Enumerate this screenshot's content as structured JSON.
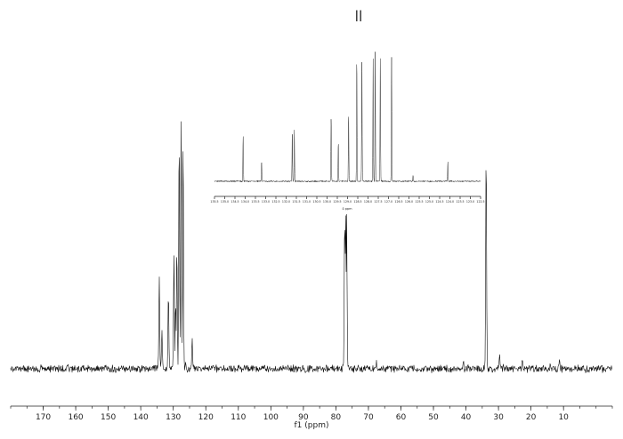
{
  "chart_data": [
    {
      "type": "line",
      "title": "",
      "xlabel": "f1 (ppm)",
      "ylabel": "",
      "xlim": [
        180,
        -5
      ],
      "x_reversed": true,
      "grid": false,
      "legend": "none",
      "x_ticks": [
        170,
        160,
        150,
        140,
        130,
        120,
        110,
        100,
        90,
        80,
        70,
        60,
        50,
        40,
        30,
        20,
        10
      ],
      "x_tick_labels": [
        "170",
        "160",
        "150",
        "140",
        "130",
        "120",
        "110",
        "100",
        "90",
        "80",
        "70",
        "60",
        "50",
        "40",
        "30",
        "20",
        "10"
      ],
      "annotations": [
        "||"
      ],
      "peaks": [
        {
          "x": 162.5,
          "intensity": 0.02
        },
        {
          "x": 134.3,
          "intensity": 0.35
        },
        {
          "x": 133.5,
          "intensity": 0.15
        },
        {
          "x": 131.5,
          "intensity": 0.3
        },
        {
          "x": 129.8,
          "intensity": 0.44
        },
        {
          "x": 129.3,
          "intensity": 0.26
        },
        {
          "x": 128.9,
          "intensity": 0.48
        },
        {
          "x": 128.2,
          "intensity": 0.9
        },
        {
          "x": 127.6,
          "intensity": 0.96
        },
        {
          "x": 127.0,
          "intensity": 0.9
        },
        {
          "x": 126.2,
          "intensity": 0.04
        },
        {
          "x": 124.2,
          "intensity": 0.12
        },
        {
          "x": 77.3,
          "intensity": 0.6
        },
        {
          "x": 77.0,
          "intensity": 0.62
        },
        {
          "x": 76.7,
          "intensity": 0.6
        },
        {
          "x": 67.5,
          "intensity": 0.02
        },
        {
          "x": 40.8,
          "intensity": 0.03
        },
        {
          "x": 33.8,
          "intensity": 0.86
        },
        {
          "x": 29.7,
          "intensity": 0.06
        },
        {
          "x": 28.5,
          "intensity": 0.02
        },
        {
          "x": 22.7,
          "intensity": 0.03
        },
        {
          "x": 14.1,
          "intensity": 0.02
        },
        {
          "x": 11.3,
          "intensity": 0.03
        }
      ]
    },
    {
      "type": "line",
      "title": "",
      "xlabel": "δ ppm",
      "ylabel": "",
      "xlim": [
        135.5,
        122.5
      ],
      "x_reversed": true,
      "grid": false,
      "legend": "none",
      "x_ticks": [
        135.5,
        135.0,
        134.5,
        134.0,
        133.5,
        133.0,
        132.5,
        132.0,
        131.5,
        131.0,
        130.5,
        130.0,
        129.5,
        129.0,
        128.5,
        128.0,
        127.5,
        127.0,
        126.5,
        126.0,
        125.5,
        125.0,
        124.5,
        124.0,
        123.5,
        123.0,
        122.5
      ],
      "x_tick_labels": [
        "135.5",
        "135.0",
        "134.5",
        "134.0",
        "133.5",
        "133.0",
        "132.5",
        "132.0",
        "131.5",
        "131.0",
        "130.5",
        "130.0",
        "129.5",
        "129.0",
        "128.5",
        "128.0",
        "127.5",
        "127.0",
        "126.5",
        "126.0",
        "125.5",
        "125.0",
        "124.5",
        "124.0",
        "123.5",
        "123.0",
        "122.5"
      ],
      "peaks": [
        {
          "x": 134.1,
          "intensity": 0.35
        },
        {
          "x": 133.2,
          "intensity": 0.15
        },
        {
          "x": 131.7,
          "intensity": 0.38
        },
        {
          "x": 131.6,
          "intensity": 0.4
        },
        {
          "x": 129.8,
          "intensity": 0.5
        },
        {
          "x": 129.45,
          "intensity": 0.3
        },
        {
          "x": 128.95,
          "intensity": 0.52
        },
        {
          "x": 128.55,
          "intensity": 0.95
        },
        {
          "x": 128.3,
          "intensity": 0.97
        },
        {
          "x": 127.75,
          "intensity": 0.93
        },
        {
          "x": 127.65,
          "intensity": 1.0
        },
        {
          "x": 127.4,
          "intensity": 0.95
        },
        {
          "x": 126.85,
          "intensity": 0.96
        },
        {
          "x": 125.8,
          "intensity": 0.05
        },
        {
          "x": 124.1,
          "intensity": 0.15
        }
      ]
    }
  ]
}
